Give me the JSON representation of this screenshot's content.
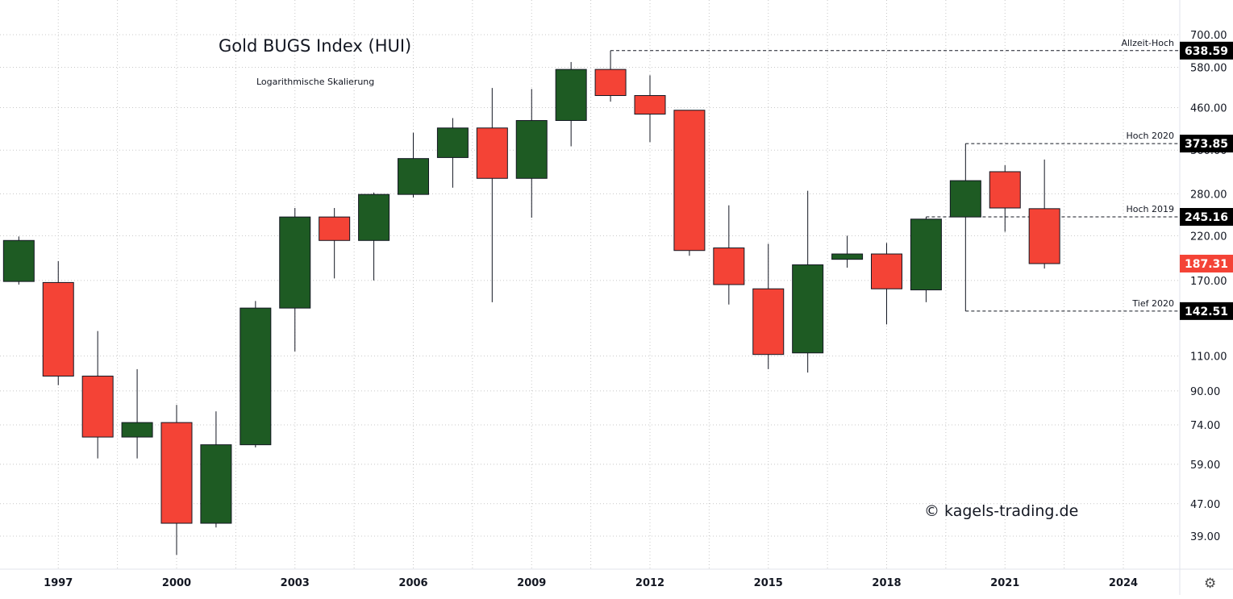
{
  "chart_data": {
    "type": "candlestick",
    "title": "Gold BUGS Index (HUI)",
    "subtitle": "Logarithmische Skalierung",
    "watermark": "© kagels-trading.de",
    "scale": "log",
    "grid": true,
    "ylim": [
      32,
      760
    ],
    "xlim": [
      1995.4,
      2025.4
    ],
    "colors": {
      "up": "#1e5b23",
      "down": "#f44336",
      "axis_line": "#e0e3eb",
      "badge": "#000000"
    },
    "yticks": [
      {
        "value": 39,
        "label": "39.00"
      },
      {
        "value": 47,
        "label": "47.00"
      },
      {
        "value": 59,
        "label": "59.00"
      },
      {
        "value": 74,
        "label": "74.00"
      },
      {
        "value": 90,
        "label": "90.00"
      },
      {
        "value": 110,
        "label": "110.00"
      },
      {
        "value": 170,
        "label": "170.00"
      },
      {
        "value": 220,
        "label": "220.00"
      },
      {
        "value": 280,
        "label": "280.00"
      },
      {
        "value": 360,
        "label": "360.00"
      },
      {
        "value": 460,
        "label": "460.00"
      },
      {
        "value": 580,
        "label": "580.00"
      },
      {
        "value": 700,
        "label": "700.00"
      }
    ],
    "xticks": [
      {
        "value": 1997,
        "label": "1997"
      },
      {
        "value": 2000,
        "label": "2000"
      },
      {
        "value": 2003,
        "label": "2003"
      },
      {
        "value": 2006,
        "label": "2006"
      },
      {
        "value": 2009,
        "label": "2009"
      },
      {
        "value": 2012,
        "label": "2012"
      },
      {
        "value": 2015,
        "label": "2015"
      },
      {
        "value": 2018,
        "label": "2018"
      },
      {
        "value": 2021,
        "label": "2021"
      },
      {
        "value": 2024,
        "label": "2024"
      }
    ],
    "candles": [
      {
        "year": 1996,
        "open": 169,
        "high": 219,
        "low": 166,
        "close": 214
      },
      {
        "year": 1997,
        "open": 168,
        "high": 190,
        "low": 93,
        "close": 98
      },
      {
        "year": 1998,
        "open": 98,
        "high": 127,
        "low": 61,
        "close": 69
      },
      {
        "year": 1999,
        "open": 69,
        "high": 102,
        "low": 61,
        "close": 75
      },
      {
        "year": 2000,
        "open": 75,
        "high": 83,
        "low": 35,
        "close": 42
      },
      {
        "year": 2001,
        "open": 42,
        "high": 80,
        "low": 41,
        "close": 66
      },
      {
        "year": 2002,
        "open": 66,
        "high": 151,
        "low": 65,
        "close": 145
      },
      {
        "year": 2003,
        "open": 145,
        "high": 258,
        "low": 113,
        "close": 245
      },
      {
        "year": 2004,
        "open": 245,
        "high": 258,
        "low": 172,
        "close": 214
      },
      {
        "year": 2005,
        "open": 214,
        "high": 282,
        "low": 170,
        "close": 279
      },
      {
        "year": 2006,
        "open": 279,
        "high": 398,
        "low": 274,
        "close": 343
      },
      {
        "year": 2007,
        "open": 345,
        "high": 433,
        "low": 290,
        "close": 409
      },
      {
        "year": 2008,
        "open": 409,
        "high": 515,
        "low": 150,
        "close": 306
      },
      {
        "year": 2009,
        "open": 306,
        "high": 512,
        "low": 244,
        "close": 427
      },
      {
        "year": 2010,
        "open": 427,
        "high": 598,
        "low": 368,
        "close": 573
      },
      {
        "year": 2011,
        "open": 573,
        "high": 638.59,
        "low": 476,
        "close": 493
      },
      {
        "year": 2012,
        "open": 493,
        "high": 554,
        "low": 377,
        "close": 443
      },
      {
        "year": 2013,
        "open": 453,
        "high": 453,
        "low": 196,
        "close": 202
      },
      {
        "year": 2014,
        "open": 205,
        "high": 262,
        "low": 148,
        "close": 166
      },
      {
        "year": 2015,
        "open": 162,
        "high": 210,
        "low": 102,
        "close": 111
      },
      {
        "year": 2016,
        "open": 112,
        "high": 285,
        "low": 100,
        "close": 186
      },
      {
        "year": 2017,
        "open": 192,
        "high": 220,
        "low": 183,
        "close": 198
      },
      {
        "year": 2018,
        "open": 198,
        "high": 211,
        "low": 132,
        "close": 162
      },
      {
        "year": 2019,
        "open": 161,
        "high": 245.16,
        "low": 150,
        "close": 242
      },
      {
        "year": 2020,
        "open": 245,
        "high": 373.85,
        "low": 142.51,
        "close": 302
      },
      {
        "year": 2021,
        "open": 318,
        "high": 330,
        "low": 225,
        "close": 258
      },
      {
        "year": 2022,
        "open": 257,
        "high": 341,
        "low": 182,
        "close": 187.31
      }
    ],
    "levels": [
      {
        "label": "Allzeit-Hoch",
        "value": 638.59,
        "display": "638.59",
        "from_year": 2011,
        "style": "badge"
      },
      {
        "label": "Hoch 2020",
        "value": 373.85,
        "display": "373.85",
        "from_year": 2020,
        "style": "badge"
      },
      {
        "label": "Hoch 2019",
        "value": 245.16,
        "display": "245.16",
        "from_year": 2019,
        "style": "badge"
      },
      {
        "label": "Tief 2020",
        "value": 142.51,
        "display": "142.51",
        "from_year": 2020,
        "style": "badge"
      }
    ],
    "last_price": {
      "value": 187.31,
      "display": "187.31"
    }
  }
}
